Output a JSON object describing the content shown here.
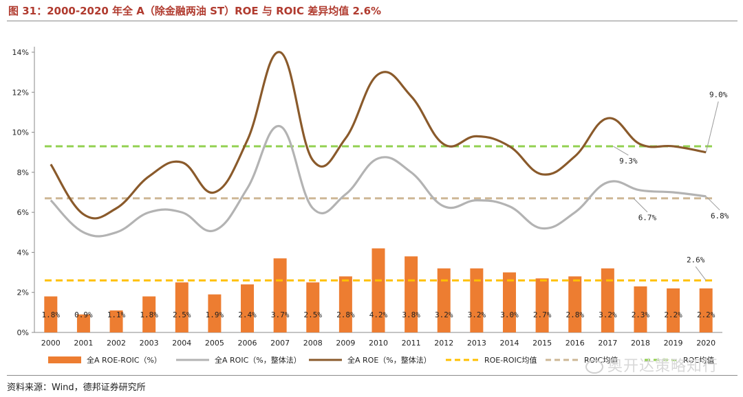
{
  "title": "图 31：2000-2020 年全 A（除金融两油 ST）ROE 与 ROIC 差异均值 2.6%",
  "source": "资料来源：Wind，德邦证券研究所",
  "watermark": "奥开达策略知行",
  "chart_data": {
    "type": "bar+line",
    "categories": [
      "2000",
      "2001",
      "2002",
      "2003",
      "2004",
      "2005",
      "2006",
      "2007",
      "2008",
      "2009",
      "2010",
      "2011",
      "2012",
      "2013",
      "2014",
      "2015",
      "2016",
      "2017",
      "2018",
      "2019",
      "2020"
    ],
    "ylim": [
      0,
      14
    ],
    "yticks": [
      0,
      2,
      4,
      6,
      8,
      10,
      12,
      14
    ],
    "ytick_labels": [
      "0%",
      "2%",
      "4%",
      "6%",
      "8%",
      "10%",
      "12%",
      "14%"
    ],
    "grid": false,
    "legend_position": "bottom",
    "series": [
      {
        "name": "全A ROE-ROIC（%）",
        "type": "bar",
        "color": "#ed7d31",
        "values": [
          1.8,
          0.9,
          1.1,
          1.8,
          2.5,
          1.9,
          2.4,
          3.7,
          2.5,
          2.8,
          4.2,
          3.8,
          3.2,
          3.2,
          3.0,
          2.7,
          2.8,
          3.2,
          2.3,
          2.2,
          2.2
        ],
        "labels": [
          "1.8%",
          "0.9%",
          "1.1%",
          "1.8%",
          "2.5%",
          "1.9%",
          "2.4%",
          "3.7%",
          "2.5%",
          "2.8%",
          "4.2%",
          "3.8%",
          "3.2%",
          "3.2%",
          "3.0%",
          "2.7%",
          "2.8%",
          "3.2%",
          "2.3%",
          "2.2%",
          "2.2%"
        ]
      },
      {
        "name": "全A ROIC（%，整体法）",
        "type": "line",
        "color": "#b3b3b3",
        "values": [
          6.6,
          5.0,
          5.0,
          6.0,
          6.0,
          5.1,
          7.2,
          10.3,
          6.2,
          6.9,
          8.7,
          8.0,
          6.3,
          6.6,
          6.3,
          5.2,
          6.0,
          7.5,
          7.1,
          7.0,
          6.8
        ]
      },
      {
        "name": "全A ROE（%，整体法）",
        "type": "line",
        "color": "#8a5a2b",
        "values": [
          8.4,
          5.9,
          6.2,
          7.8,
          8.5,
          7.0,
          9.6,
          14.0,
          8.6,
          9.7,
          12.9,
          11.8,
          9.4,
          9.8,
          9.3,
          7.9,
          8.8,
          10.7,
          9.4,
          9.3,
          9.0
        ]
      },
      {
        "name": "ROE-ROIC均值",
        "type": "hline",
        "color": "#ffc000",
        "value": 2.6
      },
      {
        "name": "ROIC均值",
        "type": "hline",
        "color": "#cdb795",
        "value": 6.7
      },
      {
        "name": "ROE均值",
        "type": "hline",
        "color": "#92d050",
        "value": 9.3
      }
    ],
    "annotations": [
      {
        "text": "9.0%",
        "series": "全A ROE（%，整体法）",
        "x": "2020",
        "y": 9.0
      },
      {
        "text": "9.3%",
        "series": "ROE均值",
        "x": "2017",
        "y": 9.3
      },
      {
        "text": "6.7%",
        "series": "ROIC均值",
        "x": "2018",
        "y": 6.7
      },
      {
        "text": "6.8%",
        "series": "全A ROIC（%，整体法）",
        "x": "2020",
        "y": 6.8
      },
      {
        "text": "2.6%",
        "series": "ROE-ROIC均值",
        "x": "2020",
        "y": 2.6
      }
    ]
  }
}
